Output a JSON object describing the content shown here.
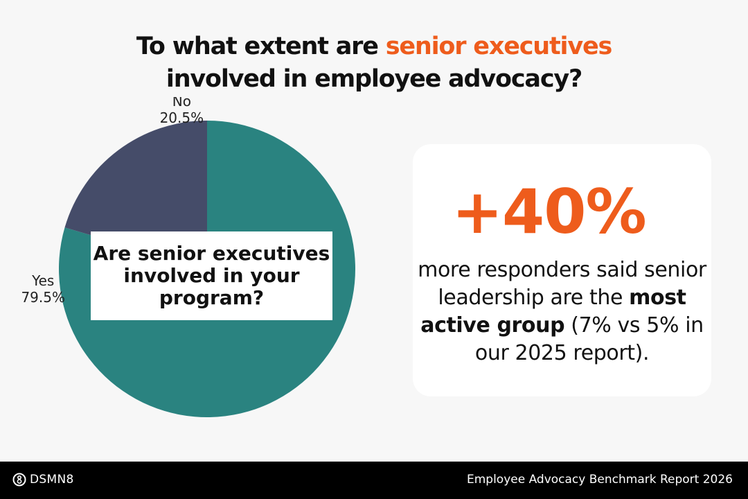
{
  "header": {
    "title_before": "To what extent are ",
    "title_highlight": "senior executives",
    "title_after": " involved in employee advocacy?"
  },
  "chart_data": {
    "type": "pie",
    "title": "",
    "slices": [
      {
        "label": "Yes",
        "value": 79.5,
        "display": "79.5%",
        "color": "#2a8380"
      },
      {
        "label": "No",
        "value": 20.5,
        "display": "20.5%",
        "color": "#454c69"
      }
    ],
    "center_box_text": "Are senior executives involved in your program?"
  },
  "stat_card": {
    "number": "+40%",
    "text_before": "more responders said senior leadership are the ",
    "text_bold": "most active group",
    "text_after": " (7% vs 5% in our 2025 report)."
  },
  "footer": {
    "logo_text": "DSMN8",
    "report_name": "Employee Advocacy Benchmark Report 2026"
  },
  "colors": {
    "accent": "#ee5c1c",
    "background": "#f7f7f7",
    "footer": "#000000"
  }
}
